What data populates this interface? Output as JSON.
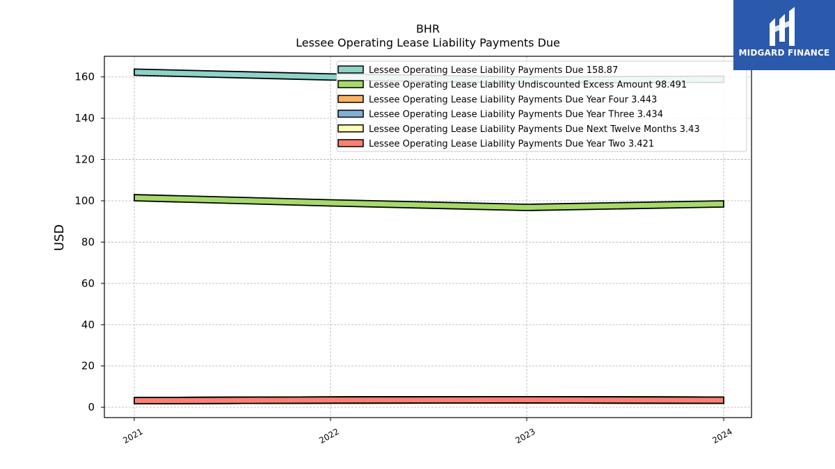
{
  "chart_data": {
    "type": "area",
    "title": "BHR",
    "subtitle": "Lessee Operating Lease Liability Payments Due",
    "ylabel": "USD",
    "xlabel": "",
    "x": [
      "2021",
      "2022",
      "2023",
      "2024"
    ],
    "ylim": [
      -5,
      170
    ],
    "yticks": [
      0,
      20,
      40,
      60,
      80,
      100,
      120,
      140,
      160
    ],
    "grid": true,
    "legend_position": "top-right",
    "series": [
      {
        "name": "Lessee Operating Lease Liability Payments Due",
        "legend_label": "Lessee Operating Lease Liability Payments Due  158.87",
        "color": "#8dd3c7",
        "values": [
          162.3,
          160.0,
          158.5,
          158.87
        ]
      },
      {
        "name": "Lessee Operating Lease Liability Undiscounted Excess Amount",
        "legend_label": "Lessee Operating Lease Liability Undiscounted Excess Amount  98.491",
        "color": "#a6d96a",
        "values": [
          101.5,
          99.0,
          96.8,
          98.491
        ]
      },
      {
        "name": "Lessee Operating Lease Liability Payments Due Year Four",
        "legend_label": "Lessee Operating Lease Liability Payments Due Year Four  3.443",
        "color": "#fdb462",
        "values": [
          3.2,
          3.5,
          3.6,
          3.443
        ]
      },
      {
        "name": "Lessee Operating Lease Liability Payments Due Year Three",
        "legend_label": "Lessee Operating Lease Liability Payments Due Year Three  3.434",
        "color": "#80b1d3",
        "values": [
          3.2,
          3.5,
          3.6,
          3.434
        ]
      },
      {
        "name": "Lessee Operating Lease Liability Payments Due Next Twelve Months",
        "legend_label": "Lessee Operating Lease Liability Payments Due Next Twelve Months  3.43",
        "color": "#ffffb3",
        "values": [
          3.2,
          3.5,
          3.6,
          3.43
        ]
      },
      {
        "name": "Lessee Operating Lease Liability Payments Due Year Two",
        "legend_label": "Lessee Operating Lease Liability Payments Due Year Two  3.421",
        "color": "#fb8072",
        "values": [
          3.2,
          3.5,
          3.6,
          3.421
        ]
      }
    ]
  },
  "logo": {
    "text": "MIDGARD FINANCE",
    "color": "#2b5aad"
  }
}
